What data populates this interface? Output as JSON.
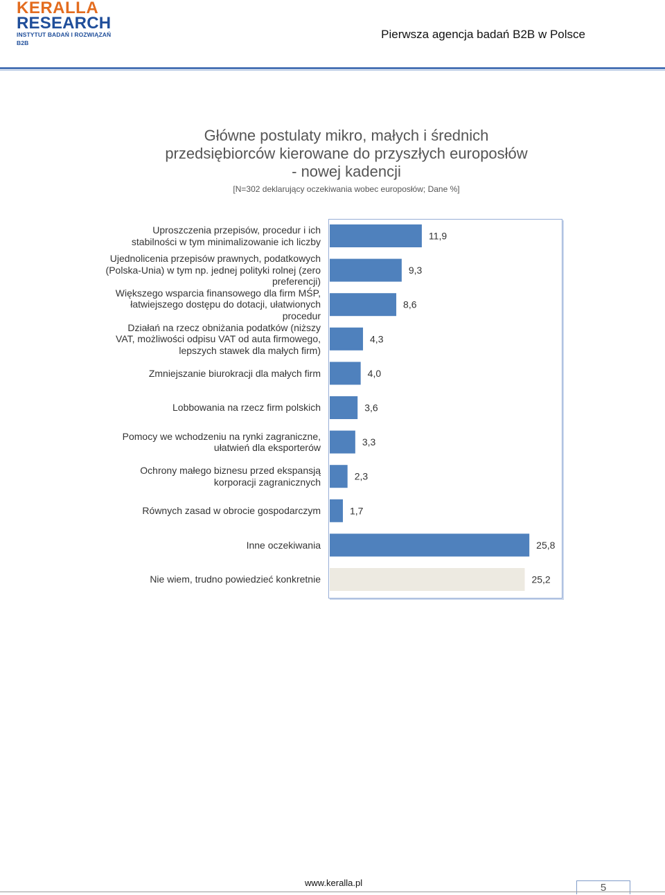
{
  "header": {
    "logo_line1": "KERALLA",
    "logo_line2": "RESEARCH",
    "logo_line3": "INSTYTUT BADAŃ I ROZWIĄZAŃ B2B",
    "tagline": "Pierwsza agencja badań B2B w Polsce"
  },
  "colors": {
    "bar": "#4f81bd",
    "bar_highlight": "#edeae1",
    "frame": "#97aed6",
    "logo_orange": "#e36c1f",
    "logo_blue": "#1f4e9a"
  },
  "chart_data": {
    "type": "bar",
    "orientation": "horizontal",
    "title_lines": [
      "Główne postulaty mikro, małych i średnich",
      "przedsiębiorców kierowane do przyszłych europosłów",
      "- nowej kadencji"
    ],
    "subtitle": "[N=302 deklarujący oczekiwania wobec europosłów; Dane %]",
    "categories": [
      [
        "Uproszczenia przepisów, procedur i ich",
        "stabilności w tym minimalizowanie ich liczby"
      ],
      [
        "Ujednolicenia przepisów prawnych, podatkowych",
        "(Polska-Unia) w tym np. jednej polityki rolnej (zero",
        "preferencji)"
      ],
      [
        "Większego wsparcia finansowego dla firm MŚP,",
        "łatwiejszego dostępu do dotacji, ułatwionych",
        "procedur"
      ],
      [
        "Działań na rzecz obniżania podatków (niższy",
        "VAT, możliwości odpisu VAT od auta firmowego,",
        "lepszych stawek dla małych firm)"
      ],
      [
        "Zmniejszanie biurokracji dla małych firm"
      ],
      [
        "Lobbowania na rzecz firm polskich"
      ],
      [
        "Pomocy we wchodzeniu na rynki zagraniczne,",
        "ułatwień dla eksporterów"
      ],
      [
        "Ochrony małego biznesu przed ekspansją",
        "korporacji zagranicznych"
      ],
      [
        "Równych zasad w obrocie gospodarczym"
      ],
      [
        "Inne oczekiwania"
      ],
      [
        "Nie wiem, trudno powiedzieć konkretnie"
      ]
    ],
    "values": [
      11.9,
      9.3,
      8.6,
      4.3,
      4.0,
      3.6,
      3.3,
      2.3,
      1.7,
      25.8,
      25.2
    ],
    "value_labels": [
      "11,9",
      "9,3",
      "8,6",
      "4,3",
      "4,0",
      "3,6",
      "3,3",
      "2,3",
      "1,7",
      "25,8",
      "25,2"
    ],
    "highlighted_index": 10,
    "xlim": [
      0,
      30
    ],
    "grid": false,
    "legend": "none",
    "xlabel": "",
    "ylabel": ""
  },
  "footer": {
    "url": "www.keralla.pl",
    "page_number": "5"
  }
}
